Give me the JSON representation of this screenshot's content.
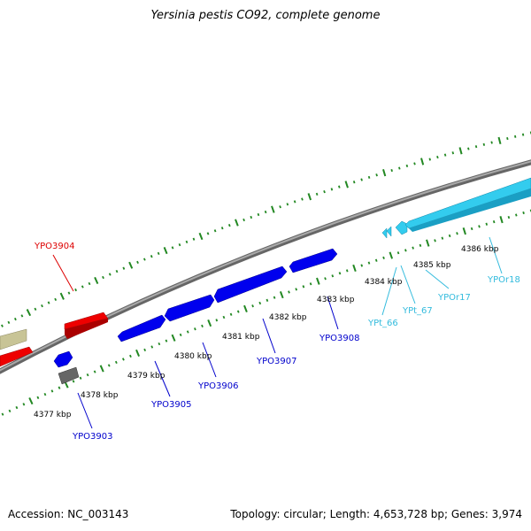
{
  "title": "Yersinia pestis CO92, complete genome",
  "footer": {
    "accession": "Accession: NC_003143",
    "summary": "Topology: circular; Length: 4,653,728 bp; Genes: 3,974"
  },
  "ticks": [
    {
      "label": "4377 kbp"
    },
    {
      "label": "4378 kbp"
    },
    {
      "label": "4379 kbp"
    },
    {
      "label": "4380 kbp"
    },
    {
      "label": "4381 kbp"
    },
    {
      "label": "4382 kbp"
    },
    {
      "label": "4383 kbp"
    },
    {
      "label": "4384 kbp"
    },
    {
      "label": "4385 kbp"
    },
    {
      "label": "4386 kbp"
    }
  ],
  "genes": [
    {
      "label": "YPO3903",
      "color": "#0000cc"
    },
    {
      "label": "YPO3904",
      "color": "#dd0000"
    },
    {
      "label": "YPO3905",
      "color": "#0000cc"
    },
    {
      "label": "YPO3906",
      "color": "#0000cc"
    },
    {
      "label": "YPO3907",
      "color": "#0000cc"
    },
    {
      "label": "YPO3908",
      "color": "#0000cc"
    },
    {
      "label": "YPt_66",
      "color": "#33bbdd"
    },
    {
      "label": "YPt_67",
      "color": "#33bbdd"
    },
    {
      "label": "YPOr17",
      "color": "#33bbdd"
    },
    {
      "label": "YPOr18",
      "color": "#33bbdd"
    }
  ],
  "colors": {
    "cds": "#0000ee",
    "cds_reverse": "#ff0000",
    "rna": "#33ccee",
    "other": "#c8c496",
    "pseudo": "#666666",
    "backbone": "#888888",
    "tick": "#228822"
  }
}
